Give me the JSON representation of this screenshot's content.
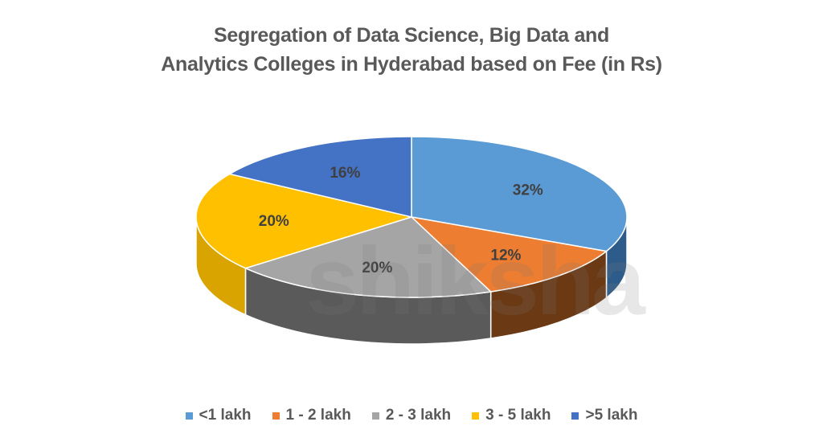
{
  "chart_data": {
    "type": "pie",
    "style": "3d",
    "title_lines": [
      "Segregation of Data Science, Big Data and",
      "Analytics Colleges in Hyderabad based on Fee (in Rs)"
    ],
    "categories": [
      "<1 lakh",
      "1 - 2 lakh",
      "2 - 3 lakh",
      "3 - 5 lakh",
      ">5 lakh"
    ],
    "values": [
      32,
      12,
      20,
      20,
      16
    ],
    "data_labels": [
      "32%",
      "12%",
      "20%",
      "20%",
      "16%"
    ],
    "colors": [
      "#5B9BD5",
      "#ED7D31",
      "#A5A5A5",
      "#FFC000",
      "#4472C4"
    ],
    "side_colors": [
      "#2E5C8A",
      "#6B3A14",
      "#5A5A5A",
      "#D9A300",
      "#2A4A85"
    ],
    "start_angle": "12 o'clock",
    "direction": "clockwise",
    "legend_position": "bottom"
  },
  "watermark": "shiksha"
}
